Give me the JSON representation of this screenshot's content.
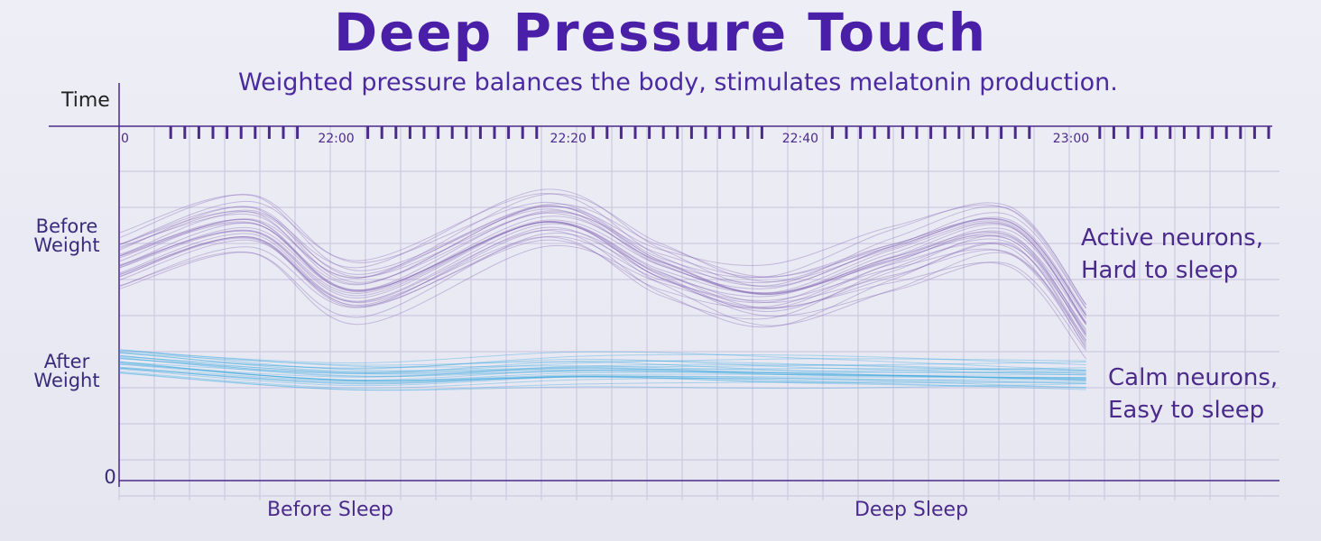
{
  "colors": {
    "title": "#4a1fa8",
    "before_series": "#7a5bb0",
    "after_series": "#2aa3dc",
    "axis": "#4a2a8a",
    "grid": "#cfc9e2"
  },
  "chart_data": {
    "type": "line",
    "title": "Deep Pressure Touch",
    "subtitle": "Weighted pressure balances the body, stimulates melatonin production.",
    "xlabel": "Time",
    "ylabel": "",
    "x_ticks": [
      "0",
      "22:00",
      "22:20",
      "22:40",
      "23:00"
    ],
    "x_range_minutes": [
      0,
      150
    ],
    "x_tick_minutes": [
      0,
      25,
      55,
      85,
      120
    ],
    "y_labels": [
      {
        "text": "Before\nWeight",
        "name": "before-weight-label"
      },
      {
        "text": "After\nWeight",
        "name": "after-weight-label"
      },
      {
        "text": "0",
        "name": "y-zero-label"
      }
    ],
    "phases": [
      "Before Sleep",
      "Deep Sleep"
    ],
    "series": [
      {
        "name": "Before Weight",
        "annotation": [
          "Active neurons,",
          "Hard to sleep"
        ],
        "approx_profile_x": [
          0,
          17,
          31,
          55,
          70,
          84,
          100,
          115,
          125
        ],
        "approx_profile_y": [
          0.66,
          0.78,
          0.57,
          0.8,
          0.64,
          0.55,
          0.67,
          0.75,
          0.45
        ],
        "band_offsets": [
          -0.08,
          -0.04,
          0,
          0.04,
          0.07
        ]
      },
      {
        "name": "After Weight",
        "annotation": [
          "Calm neurons,",
          "Easy to sleep"
        ],
        "approx_profile_x": [
          0,
          30,
          60,
          90,
          125
        ],
        "approx_profile_y": [
          0.34,
          0.29,
          0.31,
          0.3,
          0.29
        ],
        "band_offsets": [
          -0.035,
          -0.015,
          0,
          0.02,
          0.04
        ]
      }
    ]
  }
}
